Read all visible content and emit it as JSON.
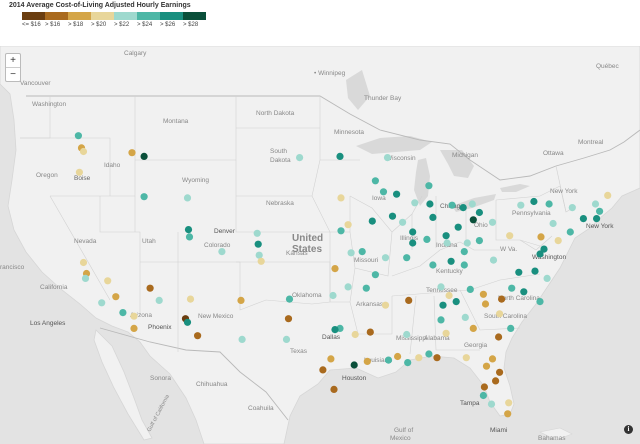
{
  "title": "2014 Average Cost-of-Living Adjusted Hourly Earnings",
  "legend": [
    {
      "label": "<= $16",
      "color": "#6b3e10"
    },
    {
      "label": "> $16",
      "color": "#a96a1e"
    },
    {
      "label": "> $18",
      "color": "#d4a547"
    },
    {
      "label": "> $20",
      "color": "#e8d69a"
    },
    {
      "label": "> $22",
      "color": "#9ed9ce"
    },
    {
      "label": "> $24",
      "color": "#4db7a6"
    },
    {
      "label": "> $26",
      "color": "#198f7f"
    },
    {
      "label": "> $28",
      "color": "#0a4f3a"
    }
  ],
  "zoom": {
    "in": "+",
    "out": "−"
  },
  "info_icon": "i",
  "places": {
    "Calgary": "Calgary",
    "Winnipeg": "• Winnipeg",
    "Quebec": "Québec",
    "Vancouver": "Vancouver",
    "Thunder Bay": "Thunder Bay",
    "Ottawa": "Ottawa",
    "Montreal": "Montreal",
    "Washington_st": "Washington",
    "Montana": "Montana",
    "North Dakota": "North Dakota",
    "Minnesota": "Minnesota",
    "Wisconsin": "Wisconsin",
    "Michigan": "Michigan",
    "Oregon": "Oregon",
    "Idaho": "Idaho",
    "South Dakota": "South Dakota",
    "Wyoming": "Wyoming",
    "Boise": "Boise",
    "Nebraska": "Nebraska",
    "Iowa": "Iowa",
    "Chicago": "Chicago",
    "Nevada": "Nevada",
    "Utah": "Utah",
    "Denver": "Denver",
    "Colorado": "Colorado",
    "United": "United",
    "States": "States",
    "Kansas": "Kansas",
    "Missouri": "Missouri",
    "Illinois": "Illinois",
    "Indiana": "Indiana",
    "Ohio": "Ohio",
    "Pennsylvania": "Pennsylvania",
    "New York_st": "New York",
    "New York": "New York",
    "Kentucky": "Kentucky",
    "Washington": "Washington",
    "WVa": "W Va.",
    "California": "California",
    "Arizona": "Arizona",
    "New Mexico": "New Mexico",
    "Oklahoma": "Oklahoma",
    "Arkansas": "Arkansas",
    "Tennessee": "Tennessee",
    "North Carolina": "North Carolina",
    "South Carolina": "South Carolina",
    "Los Angeles": "Los Angeles",
    "Phoenix": "Phoenix",
    "Dallas": "Dallas",
    "Texas": "Texas",
    "Mississippi": "Mississippi",
    "Alabama": "Alabama",
    "Georgia": "Georgia",
    "Louisiana": "Louisiana",
    "Houston": "Houston",
    "Sonora": "Sonora",
    "Chihuahua": "Chihuahua",
    "Coahuila": "Coahuila",
    "Tampa": "Tampa",
    "Miami": "Miami",
    "Bahamas": "Bahamas",
    "Gulf of Mexico": "Gulf of",
    "Gulf of Mexico 2": "Mexico",
    "Francisco": "rancisco",
    "Gulf of California": "Gulf of California"
  },
  "cities": [
    {
      "c": "#d4a547",
      "lon": -122.4,
      "lat": 47.6
    },
    {
      "c": "#4db7a6",
      "lon": -122.7,
      "lat": 48.6
    },
    {
      "c": "#e8d69a",
      "lon": -122.2,
      "lat": 47.3
    },
    {
      "c": "#d4a547",
      "lon": -117.4,
      "lat": 47.2
    },
    {
      "c": "#0a4f3a",
      "lon": -116.2,
      "lat": 46.9
    },
    {
      "c": "#e8d69a",
      "lon": -122.6,
      "lat": 45.6
    },
    {
      "c": "#4db7a6",
      "lon": -116.2,
      "lat": 43.6
    },
    {
      "c": "#9ed9ce",
      "lon": -111.9,
      "lat": 43.5
    },
    {
      "c": "#198f7f",
      "lon": -111.8,
      "lat": 40.9
    },
    {
      "c": "#4db7a6",
      "lon": -111.7,
      "lat": 40.3
    },
    {
      "c": "#e8d69a",
      "lon": -122.2,
      "lat": 38.2
    },
    {
      "c": "#d4a547",
      "lon": -121.9,
      "lat": 37.3
    },
    {
      "c": "#9ed9ce",
      "lon": -122.0,
      "lat": 36.9
    },
    {
      "c": "#e8d69a",
      "lon": -119.8,
      "lat": 36.7
    },
    {
      "c": "#d4a547",
      "lon": -119.0,
      "lat": 35.4
    },
    {
      "c": "#9ed9ce",
      "lon": -120.4,
      "lat": 34.9
    },
    {
      "c": "#4db7a6",
      "lon": -118.3,
      "lat": 34.1
    },
    {
      "c": "#e8d69a",
      "lon": -117.2,
      "lat": 33.8
    },
    {
      "c": "#d4a547",
      "lon": -117.2,
      "lat": 32.8
    },
    {
      "c": "#a96a1e",
      "lon": -115.6,
      "lat": 36.1
    },
    {
      "c": "#9ed9ce",
      "lon": -114.7,
      "lat": 35.1
    },
    {
      "c": "#6b3e10",
      "lon": -112.1,
      "lat": 33.6
    },
    {
      "c": "#198f7f",
      "lon": -111.9,
      "lat": 33.3
    },
    {
      "c": "#a96a1e",
      "lon": -110.9,
      "lat": 32.2
    },
    {
      "c": "#e8d69a",
      "lon": -111.6,
      "lat": 35.2
    },
    {
      "c": "#d4a547",
      "lon": -106.6,
      "lat": 35.1
    },
    {
      "c": "#9ed9ce",
      "lon": -106.5,
      "lat": 31.9
    },
    {
      "c": "#198f7f",
      "lon": -104.9,
      "lat": 39.7
    },
    {
      "c": "#9ed9ce",
      "lon": -104.8,
      "lat": 38.8
    },
    {
      "c": "#9ed9ce",
      "lon": -108.5,
      "lat": 39.1
    },
    {
      "c": "#9ed9ce",
      "lon": -105.0,
      "lat": 40.6
    },
    {
      "c": "#e8d69a",
      "lon": -104.6,
      "lat": 38.3
    },
    {
      "c": "#4db7a6",
      "lon": -101.8,
      "lat": 35.2
    },
    {
      "c": "#9ed9ce",
      "lon": -102.1,
      "lat": 31.9
    },
    {
      "c": "#9ed9ce",
      "lon": -100.8,
      "lat": 46.8
    },
    {
      "c": "#198f7f",
      "lon": -96.8,
      "lat": 46.9
    },
    {
      "c": "#e8d69a",
      "lon": -96.7,
      "lat": 43.5
    },
    {
      "c": "#4db7a6",
      "lon": -93.3,
      "lat": 44.9
    },
    {
      "c": "#9ed9ce",
      "lon": -92.1,
      "lat": 46.8
    },
    {
      "c": "#4db7a6",
      "lon": -92.5,
      "lat": 44.0
    },
    {
      "c": "#198f7f",
      "lon": -91.2,
      "lat": 43.8
    },
    {
      "c": "#9ed9ce",
      "lon": -89.4,
      "lat": 43.1
    },
    {
      "c": "#198f7f",
      "lon": -87.9,
      "lat": 43.0
    },
    {
      "c": "#4db7a6",
      "lon": -88.0,
      "lat": 44.5
    },
    {
      "c": "#e8d69a",
      "lon": -96.0,
      "lat": 41.3
    },
    {
      "c": "#4db7a6",
      "lon": -96.7,
      "lat": 40.8
    },
    {
      "c": "#198f7f",
      "lon": -93.6,
      "lat": 41.6
    },
    {
      "c": "#198f7f",
      "lon": -91.6,
      "lat": 42.0
    },
    {
      "c": "#9ed9ce",
      "lon": -90.6,
      "lat": 41.5
    },
    {
      "c": "#4db7a6",
      "lon": -94.6,
      "lat": 39.1
    },
    {
      "c": "#9ed9ce",
      "lon": -95.7,
      "lat": 39.0
    },
    {
      "c": "#d4a547",
      "lon": -97.3,
      "lat": 37.7
    },
    {
      "c": "#9ed9ce",
      "lon": -92.3,
      "lat": 38.6
    },
    {
      "c": "#4db7a6",
      "lon": -90.2,
      "lat": 38.6
    },
    {
      "c": "#4db7a6",
      "lon": -93.3,
      "lat": 37.2
    },
    {
      "c": "#198f7f",
      "lon": -87.6,
      "lat": 41.9
    },
    {
      "c": "#198f7f",
      "lon": -89.6,
      "lat": 39.8
    },
    {
      "c": "#4db7a6",
      "lon": -88.2,
      "lat": 40.1
    },
    {
      "c": "#198f7f",
      "lon": -89.6,
      "lat": 40.7
    },
    {
      "c": "#9ed9ce",
      "lon": -86.2,
      "lat": 39.8
    },
    {
      "c": "#198f7f",
      "lon": -85.1,
      "lat": 41.1
    },
    {
      "c": "#4db7a6",
      "lon": -87.6,
      "lat": 38.0
    },
    {
      "c": "#198f7f",
      "lon": -86.3,
      "lat": 40.4
    },
    {
      "c": "#198f7f",
      "lon": -83.0,
      "lat": 42.3
    },
    {
      "c": "#4db7a6",
      "lon": -85.7,
      "lat": 42.9
    },
    {
      "c": "#198f7f",
      "lon": -84.6,
      "lat": 42.7
    },
    {
      "c": "#9ed9ce",
      "lon": -83.7,
      "lat": 43.0
    },
    {
      "c": "#0a4f3a",
      "lon": -83.6,
      "lat": 41.7
    },
    {
      "c": "#4db7a6",
      "lon": -84.5,
      "lat": 39.1
    },
    {
      "c": "#4db7a6",
      "lon": -83.0,
      "lat": 40.0
    },
    {
      "c": "#9ed9ce",
      "lon": -81.7,
      "lat": 41.5
    },
    {
      "c": "#e8d69a",
      "lon": -80.0,
      "lat": 40.4
    },
    {
      "c": "#9ed9ce",
      "lon": -84.2,
      "lat": 39.8
    },
    {
      "c": "#198f7f",
      "lon": -85.8,
      "lat": 38.3
    },
    {
      "c": "#4db7a6",
      "lon": -84.5,
      "lat": 38.0
    },
    {
      "c": "#9ed9ce",
      "lon": -86.8,
      "lat": 36.2
    },
    {
      "c": "#198f7f",
      "lon": -85.3,
      "lat": 35.0
    },
    {
      "c": "#4db7a6",
      "lon": -83.9,
      "lat": 36.0
    },
    {
      "c": "#a96a1e",
      "lon": -90.0,
      "lat": 35.1
    },
    {
      "c": "#e8d69a",
      "lon": -92.3,
      "lat": 34.7
    },
    {
      "c": "#4db7a6",
      "lon": -94.2,
      "lat": 36.1
    },
    {
      "c": "#9ed9ce",
      "lon": -97.5,
      "lat": 35.5
    },
    {
      "c": "#9ed9ce",
      "lon": -96.0,
      "lat": 36.2
    },
    {
      "c": "#9ed9ce",
      "lon": -81.6,
      "lat": 38.4
    },
    {
      "c": "#198f7f",
      "lon": -77.5,
      "lat": 37.5
    },
    {
      "c": "#9ed9ce",
      "lon": -76.3,
      "lat": 36.9
    },
    {
      "c": "#198f7f",
      "lon": -77.0,
      "lat": 38.9
    },
    {
      "c": "#198f7f",
      "lon": -76.6,
      "lat": 39.3
    },
    {
      "c": "#e8d69a",
      "lon": -75.2,
      "lat": 40.0
    },
    {
      "c": "#4db7a6",
      "lon": -74.0,
      "lat": 40.7
    },
    {
      "c": "#9ed9ce",
      "lon": -73.8,
      "lat": 42.7
    },
    {
      "c": "#4db7a6",
      "lon": -76.1,
      "lat": 43.0
    },
    {
      "c": "#198f7f",
      "lon": -77.6,
      "lat": 43.2
    },
    {
      "c": "#9ed9ce",
      "lon": -78.9,
      "lat": 42.9
    },
    {
      "c": "#4db7a6",
      "lon": -71.1,
      "lat": 42.4
    },
    {
      "c": "#198f7f",
      "lon": -72.7,
      "lat": 41.8
    },
    {
      "c": "#198f7f",
      "lon": -71.4,
      "lat": 41.8
    },
    {
      "c": "#e8d69a",
      "lon": -70.3,
      "lat": 43.7
    },
    {
      "c": "#9ed9ce",
      "lon": -71.5,
      "lat": 43.0
    },
    {
      "c": "#d4a547",
      "lon": -76.9,
      "lat": 40.3
    },
    {
      "c": "#9ed9ce",
      "lon": -75.7,
      "lat": 41.4
    },
    {
      "c": "#a96a1e",
      "lon": -80.8,
      "lat": 35.2
    },
    {
      "c": "#198f7f",
      "lon": -78.6,
      "lat": 35.8
    },
    {
      "c": "#4db7a6",
      "lon": -79.8,
      "lat": 36.1
    },
    {
      "c": "#d4a547",
      "lon": -82.6,
      "lat": 35.6
    },
    {
      "c": "#e8d69a",
      "lon": -81.0,
      "lat": 34.0
    },
    {
      "c": "#4db7a6",
      "lon": -79.9,
      "lat": 32.8
    },
    {
      "c": "#d4a547",
      "lon": -82.4,
      "lat": 34.8
    },
    {
      "c": "#9ed9ce",
      "lon": -84.4,
      "lat": 33.7
    },
    {
      "c": "#a96a1e",
      "lon": -81.1,
      "lat": 32.1
    },
    {
      "c": "#d4a547",
      "lon": -83.6,
      "lat": 32.8
    },
    {
      "c": "#4db7a6",
      "lon": -86.8,
      "lat": 33.5
    },
    {
      "c": "#198f7f",
      "lon": -86.6,
      "lat": 34.7
    },
    {
      "c": "#e8d69a",
      "lon": -86.3,
      "lat": 32.4
    },
    {
      "c": "#4db7a6",
      "lon": -88.0,
      "lat": 30.7
    },
    {
      "c": "#9ed9ce",
      "lon": -90.2,
      "lat": 32.3
    },
    {
      "c": "#e8d69a",
      "lon": -89.0,
      "lat": 30.4
    },
    {
      "c": "#4db7a6",
      "lon": -90.1,
      "lat": 30.0
    },
    {
      "c": "#d4a547",
      "lon": -91.1,
      "lat": 30.5
    },
    {
      "c": "#a96a1e",
      "lon": -93.8,
      "lat": 32.5
    },
    {
      "c": "#4db7a6",
      "lon": -92.0,
      "lat": 30.2
    },
    {
      "c": "#4db7a6",
      "lon": -96.8,
      "lat": 32.8
    },
    {
      "c": "#198f7f",
      "lon": -97.3,
      "lat": 32.7
    },
    {
      "c": "#d4a547",
      "lon": -97.7,
      "lat": 30.3
    },
    {
      "c": "#a96a1e",
      "lon": -98.5,
      "lat": 29.4
    },
    {
      "c": "#0a4f3a",
      "lon": -95.4,
      "lat": 29.8
    },
    {
      "c": "#a96a1e",
      "lon": -97.4,
      "lat": 27.8
    },
    {
      "c": "#d4a547",
      "lon": -94.1,
      "lat": 30.1
    },
    {
      "c": "#a96a1e",
      "lon": -101.9,
      "lat": 33.6
    },
    {
      "c": "#e8d69a",
      "lon": -95.3,
      "lat": 32.3
    },
    {
      "c": "#a96a1e",
      "lon": -82.5,
      "lat": 28.0
    },
    {
      "c": "#a96a1e",
      "lon": -81.4,
      "lat": 28.5
    },
    {
      "c": "#d4a547",
      "lon": -81.7,
      "lat": 30.3
    },
    {
      "c": "#e8d69a",
      "lon": -84.3,
      "lat": 30.4
    },
    {
      "c": "#a96a1e",
      "lon": -87.2,
      "lat": 30.4
    },
    {
      "c": "#d4a547",
      "lon": -82.3,
      "lat": 29.7
    },
    {
      "c": "#e8d69a",
      "lon": -80.1,
      "lat": 26.7
    },
    {
      "c": "#d4a547",
      "lon": -80.2,
      "lat": 25.8
    },
    {
      "c": "#9ed9ce",
      "lon": -81.8,
      "lat": 26.6
    },
    {
      "c": "#4db7a6",
      "lon": -82.6,
      "lat": 27.3
    },
    {
      "c": "#a96a1e",
      "lon": -81.0,
      "lat": 29.2
    },
    {
      "c": "#4db7a6",
      "lon": -77.0,
      "lat": 35.0
    },
    {
      "c": "#198f7f",
      "lon": -79.1,
      "lat": 37.4
    },
    {
      "c": "#e8d69a",
      "lon": -86.0,
      "lat": 35.5
    }
  ]
}
